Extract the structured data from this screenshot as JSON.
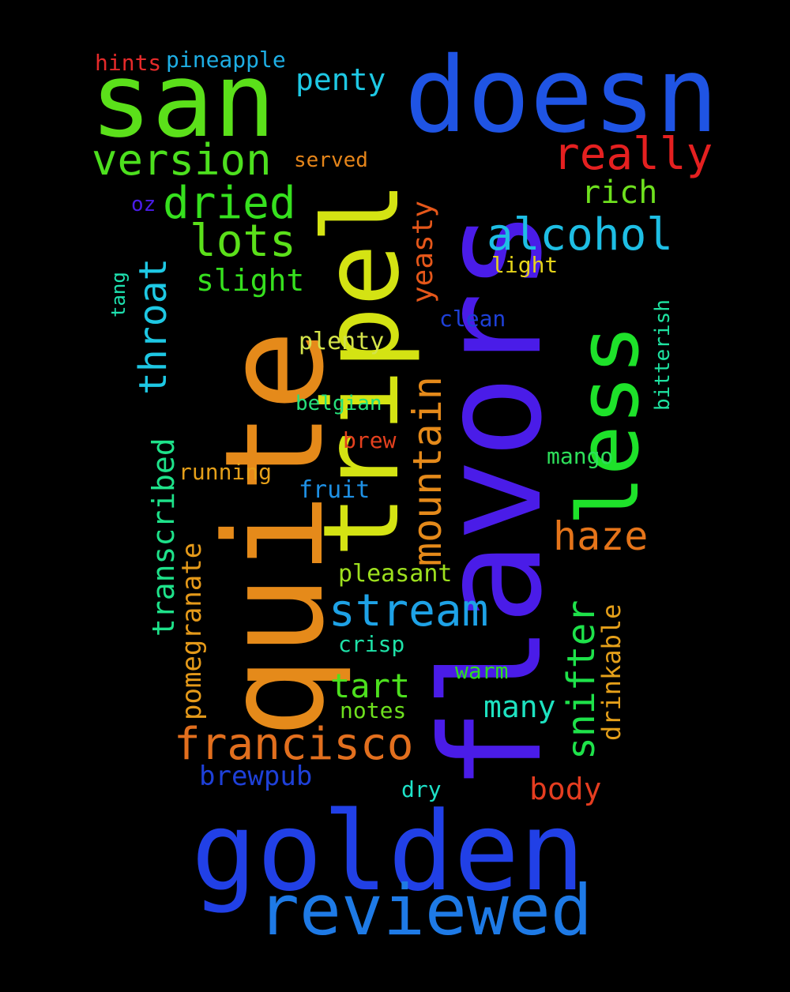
{
  "words": [
    {
      "text": "flavors",
      "color": "#4a1ce8",
      "vertical": true
    },
    {
      "text": "quite",
      "color": "#e58a1a",
      "vertical": true
    },
    {
      "text": "tripel",
      "color": "#d4e313",
      "vertical": true
    },
    {
      "text": "golden",
      "color": "#2140e6",
      "vertical": false
    },
    {
      "text": "san",
      "color": "#5be01a",
      "vertical": false
    },
    {
      "text": "doesn",
      "color": "#1f54e4",
      "vertical": false
    },
    {
      "text": "less",
      "color": "#1ee22a",
      "vertical": true
    },
    {
      "text": "reviewed",
      "color": "#1e7ae6",
      "vertical": false
    },
    {
      "text": "francisco",
      "color": "#e26f1e",
      "vertical": false
    },
    {
      "text": "stream",
      "color": "#1ea2e6",
      "vertical": false
    },
    {
      "text": "mountain",
      "color": "#e58a1a",
      "vertical": true
    },
    {
      "text": "really",
      "color": "#e52020",
      "vertical": false
    },
    {
      "text": "version",
      "color": "#4de01e",
      "vertical": false
    },
    {
      "text": "dried",
      "color": "#36e01e",
      "vertical": false
    },
    {
      "text": "alcohol",
      "color": "#1ebee4",
      "vertical": false
    },
    {
      "text": "lots",
      "color": "#5be01a",
      "vertical": false
    },
    {
      "text": "throat",
      "color": "#1ec8e4",
      "vertical": true
    },
    {
      "text": "transcribed",
      "color": "#1ee28a",
      "vertical": true
    },
    {
      "text": "snifter",
      "color": "#1ee24a",
      "vertical": true
    },
    {
      "text": "haze",
      "color": "#e5741a",
      "vertical": false
    },
    {
      "text": "many",
      "color": "#1ee2c0",
      "vertical": false
    },
    {
      "text": "tart",
      "color": "#4de01e",
      "vertical": false
    },
    {
      "text": "yeasty",
      "color": "#e5571a",
      "vertical": true
    },
    {
      "text": "penty",
      "color": "#1ec8e4",
      "vertical": false
    },
    {
      "text": "rich",
      "color": "#6ee01e",
      "vertical": false
    },
    {
      "text": "slight",
      "color": "#36e01e",
      "vertical": false
    },
    {
      "text": "pomegranate",
      "color": "#e59a1a",
      "vertical": true
    },
    {
      "text": "drinkable",
      "color": "#e5a01a",
      "vertical": true
    },
    {
      "text": "body",
      "color": "#e53d20",
      "vertical": false
    },
    {
      "text": "brewpub",
      "color": "#1e40d8",
      "vertical": false
    },
    {
      "text": "plenty",
      "color": "#d4e34a",
      "vertical": false
    },
    {
      "text": "pleasant",
      "color": "#9ee01e",
      "vertical": false
    },
    {
      "text": "hints",
      "color": "#e52a2a",
      "vertical": false
    },
    {
      "text": "pineapple",
      "color": "#1eaee4",
      "vertical": false
    },
    {
      "text": "served",
      "color": "#e5851a",
      "vertical": false
    },
    {
      "text": "light",
      "color": "#e5d41a",
      "vertical": false
    },
    {
      "text": "clean",
      "color": "#1e40d8",
      "vertical": false
    },
    {
      "text": "belgian",
      "color": "#26e07a",
      "vertical": false
    },
    {
      "text": "brew",
      "color": "#e5401e",
      "vertical": false
    },
    {
      "text": "mango",
      "color": "#2ee05a",
      "vertical": false
    },
    {
      "text": "running",
      "color": "#e5a01a",
      "vertical": false
    },
    {
      "text": "fruit",
      "color": "#1e90e4",
      "vertical": false
    },
    {
      "text": "crisp",
      "color": "#1ee2a8",
      "vertical": false
    },
    {
      "text": "warm",
      "color": "#2ee01e",
      "vertical": false
    },
    {
      "text": "notes",
      "color": "#6ee01e",
      "vertical": false
    },
    {
      "text": "dry",
      "color": "#1ee2c8",
      "vertical": false
    },
    {
      "text": "oz",
      "color": "#4a1ce8",
      "vertical": false
    },
    {
      "text": "tang",
      "color": "#1ee2b0",
      "vertical": true
    },
    {
      "text": "bitterish",
      "color": "#1ee2a0",
      "vertical": true
    }
  ]
}
